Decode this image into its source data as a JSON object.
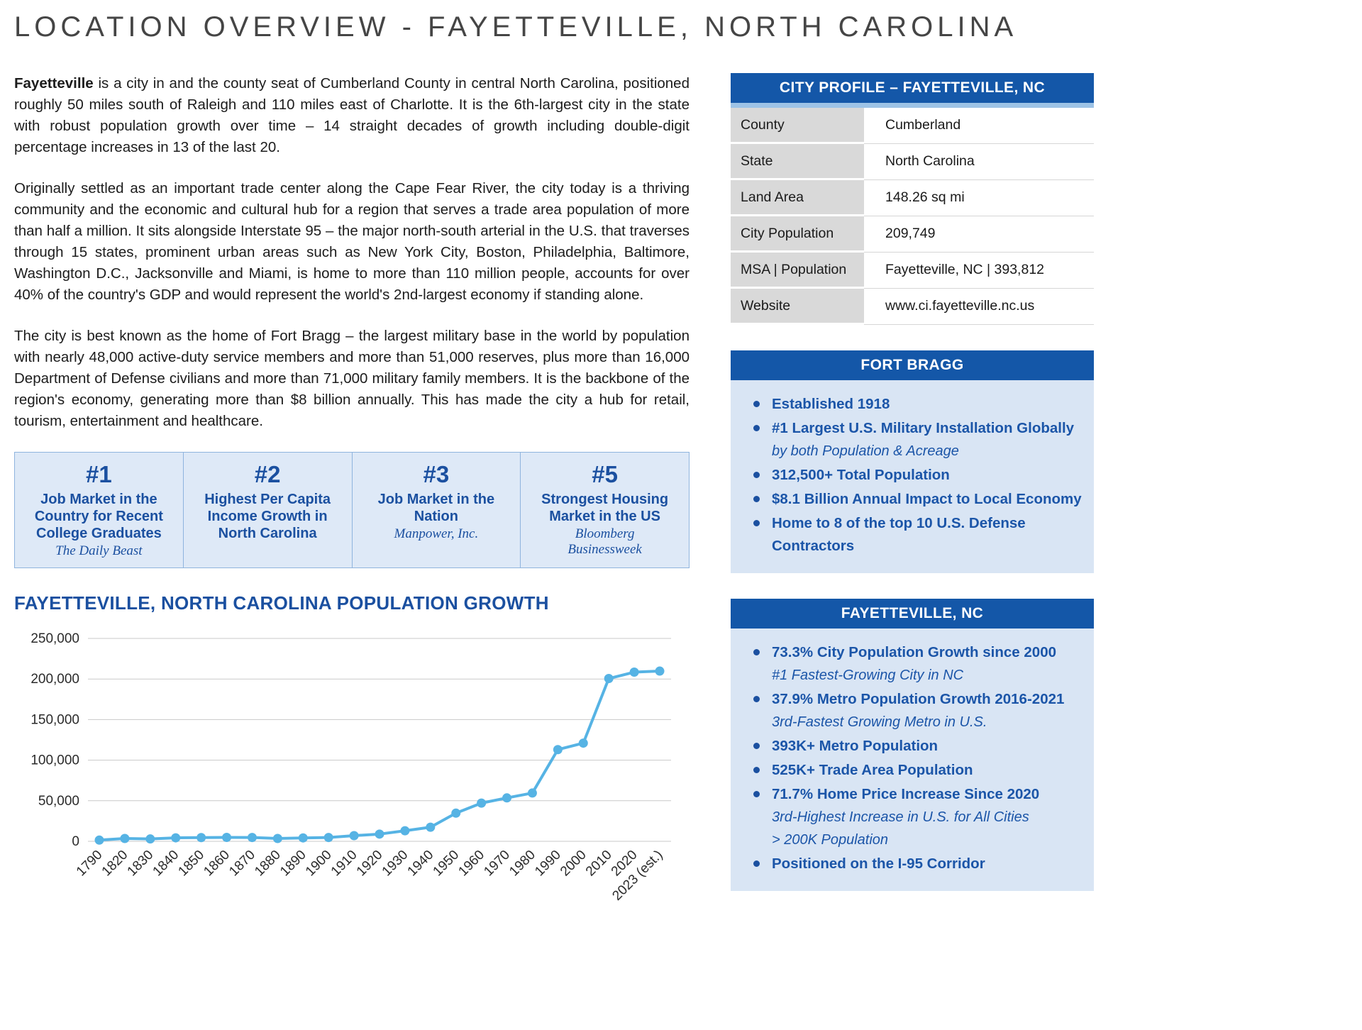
{
  "theme": {
    "header_blue": "#1457A8",
    "accent_blue": "#1B55A8",
    "light_blue_bg": "#D9E5F4",
    "band_blue": "#9DC3E6",
    "table_label_bg": "#D9D9D9",
    "chart_line": "#56B3E4"
  },
  "page": {
    "title": "LOCATION OVERVIEW - FAYETTEVILLE, NORTH CAROLINA"
  },
  "intro": {
    "p1_lead": "Fayetteville",
    "p1_rest": " is a city in and the county seat of Cumberland County in central North Carolina, positioned roughly 50 miles south of Raleigh and 110 miles east of Charlotte.  It is the 6th-largest city in the state with robust population growth over time – 14 straight decades of growth including double-digit percentage increases in 13 of the last 20.",
    "p2": "Originally settled as an important trade center along the Cape Fear River, the city today is a thriving community and the economic and cultural hub for a region that serves a trade area population of more than half a million. It sits alongside Interstate 95 – the major north-south arterial in the U.S. that traverses through 15 states, prominent urban areas such as New York City, Boston, Philadelphia, Baltimore, Washington D.C., Jacksonville and Miami, is home to more than 110 million people, accounts for over 40% of the country's GDP and would represent the world's 2nd-largest economy if standing alone.",
    "p3": "The city is best known as the home of Fort Bragg – the largest military base in the world by population with nearly 48,000 active-duty service members and more than 51,000 reserves, plus more than 16,000 Department of Defense civilians and more than 71,000 military family members.  It is the backbone of the region's economy, generating more than $8 billion annually.  This has made the city a hub for retail, tourism, entertainment and healthcare."
  },
  "rankings": [
    {
      "rank": "#1",
      "label": "Job Market in the Country for Recent College Graduates",
      "source": "The Daily Beast"
    },
    {
      "rank": "#2",
      "label": "Highest Per Capita Income Growth in North Carolina",
      "source": ""
    },
    {
      "rank": "#3",
      "label": "Job Market in the Nation",
      "source": "Manpower, Inc."
    },
    {
      "rank": "#5",
      "label": "Strongest Housing Market in the US",
      "source": "Bloomberg Businessweek"
    }
  ],
  "city_profile": {
    "header": "CITY PROFILE – FAYETTEVILLE, NC",
    "rows": [
      {
        "label": "County",
        "value": "Cumberland"
      },
      {
        "label": "State",
        "value": "North Carolina"
      },
      {
        "label": "Land Area",
        "value": "148.26 sq mi"
      },
      {
        "label": "City Population",
        "value": "209,749"
      },
      {
        "label": "MSA | Population",
        "value": "Fayetteville, NC | 393,812"
      },
      {
        "label": "Website",
        "value": "www.ci.fayetteville.nc.us"
      }
    ]
  },
  "fort_bragg": {
    "header": "FORT BRAGG",
    "bullets": [
      {
        "text": "Established 1918",
        "subs": []
      },
      {
        "text": "#1 Largest U.S. Military Installation Globally",
        "subs": [
          "by both Population & Acreage"
        ]
      },
      {
        "text": "312,500+ Total Population",
        "subs": []
      },
      {
        "text": "$8.1 Billion Annual Impact to Local Economy",
        "subs": []
      },
      {
        "text": "Home to 8 of the top 10 U.S. Defense Contractors",
        "subs": []
      }
    ]
  },
  "fayetteville_box": {
    "header": "FAYETTEVILLE, NC",
    "bullets": [
      {
        "text": "73.3% City Population Growth since 2000",
        "subs": [
          "#1 Fastest-Growing City in NC"
        ]
      },
      {
        "text": "37.9% Metro Population Growth 2016-2021",
        "subs": [
          "3rd-Fastest Growing Metro in U.S."
        ]
      },
      {
        "text": "393K+ Metro Population",
        "subs": []
      },
      {
        "text": "525K+ Trade Area Population",
        "subs": []
      },
      {
        "text": " 71.7% Home Price Increase Since 2020",
        "subs": [
          "3rd-Highest Increase in U.S. for All Cities",
          "> 200K Population"
        ]
      },
      {
        "text": "Positioned on the I-95 Corridor",
        "subs": []
      }
    ]
  },
  "chart_data": {
    "type": "line",
    "title": "FAYETTEVILLE, NORTH CAROLINA POPULATION GROWTH",
    "categories": [
      "1790",
      "1820",
      "1830",
      "1840",
      "1850",
      "1860",
      "1870",
      "1880",
      "1890",
      "1900",
      "1910",
      "1920",
      "1930",
      "1940",
      "1950",
      "1960",
      "1970",
      "1980",
      "1990",
      "2000",
      "2010",
      "2020",
      "2023 (est.)"
    ],
    "values": [
      1500,
      3500,
      2900,
      4300,
      4600,
      4800,
      4700,
      3500,
      4200,
      4700,
      7000,
      8900,
      13000,
      17400,
      34700,
      47100,
      53500,
      59500,
      113000,
      121000,
      200600,
      208500,
      209749
    ],
    "xlabel": "",
    "ylabel": "",
    "ylim": [
      0,
      250000
    ],
    "ytick_step": 50000,
    "yticks_labels": [
      "0",
      "50,000",
      "100,000",
      "150,000",
      "200,000",
      "250,000"
    ],
    "grid": true,
    "legend": "none",
    "line_color": "#56B3E4"
  }
}
